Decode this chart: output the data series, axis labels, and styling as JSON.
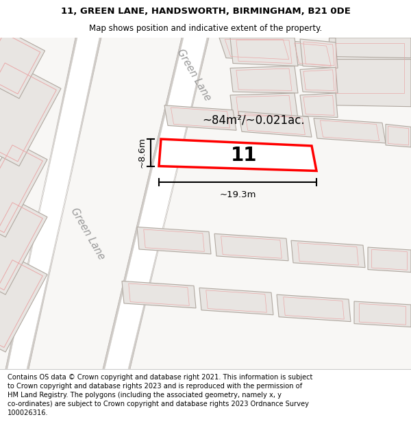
{
  "title_line1": "11, GREEN LANE, HANDSWORTH, BIRMINGHAM, B21 0DE",
  "title_line2": "Map shows position and indicative extent of the property.",
  "footer_text": "Contains OS data © Crown copyright and database right 2021. This information is subject\nto Crown copyright and database rights 2023 and is reproduced with the permission of\nHM Land Registry. The polygons (including the associated geometry, namely x, y\nco-ordinates) are subject to Crown copyright and database rights 2023 Ordnance Survey\n100026316.",
  "bg_color": "#f2f0ee",
  "map_bg": "#f8f7f5",
  "road_white": "#ffffff",
  "building_fill": "#e8e5e2",
  "building_edge_gray": "#b0a8a0",
  "building_edge_red": "#e8a8a8",
  "highlight_fill": "#ffffff",
  "highlight_edge": "#ff0000",
  "road_label_color": "#999999",
  "area_label": "~84m²/~0.021ac.",
  "plot_number": "11",
  "dim_width": "~19.3m",
  "dim_height": "~8.6m",
  "road_label_1": "Green Lane",
  "road_label_2": "Green Lane"
}
